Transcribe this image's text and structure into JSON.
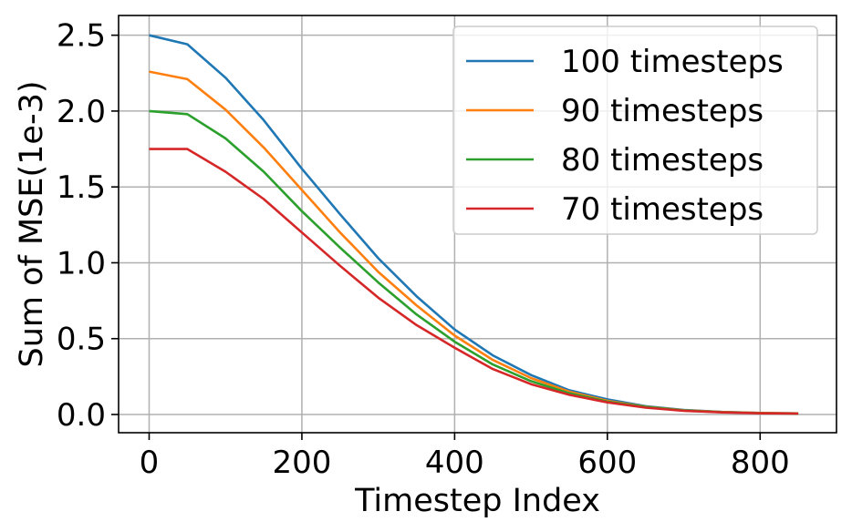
{
  "chart_data": {
    "type": "line",
    "title": "",
    "xlabel": "Timestep Index",
    "ylabel": "Sum of MSE(1e-3)",
    "xlim": [
      -40,
      900
    ],
    "ylim": [
      -0.12,
      2.63
    ],
    "xticks": [
      0,
      200,
      400,
      600,
      800
    ],
    "xtick_labels": [
      "0",
      "200",
      "400",
      "600",
      "800"
    ],
    "yticks": [
      0.0,
      0.5,
      1.0,
      1.5,
      2.0,
      2.5
    ],
    "ytick_labels": [
      "0.0",
      "0.5",
      "1.0",
      "1.5",
      "2.0",
      "2.5"
    ],
    "grid": true,
    "legend_position": "top-right",
    "x": [
      0,
      50,
      100,
      150,
      200,
      250,
      300,
      350,
      400,
      450,
      500,
      550,
      600,
      650,
      700,
      750,
      800,
      850
    ],
    "series": [
      {
        "name": "100 timesteps",
        "color": "#1f77b4",
        "values": [
          2.5,
          2.44,
          2.22,
          1.94,
          1.62,
          1.32,
          1.03,
          0.78,
          0.56,
          0.39,
          0.26,
          0.16,
          0.1,
          0.055,
          0.03,
          0.017,
          0.01,
          0.007
        ]
      },
      {
        "name": "90 timesteps",
        "color": "#ff7f0e",
        "values": [
          2.26,
          2.21,
          2.01,
          1.76,
          1.48,
          1.2,
          0.94,
          0.72,
          0.52,
          0.36,
          0.24,
          0.15,
          0.09,
          0.052,
          0.028,
          0.016,
          0.01,
          0.007
        ]
      },
      {
        "name": "80 timesteps",
        "color": "#2ca02c",
        "values": [
          2.0,
          1.98,
          1.82,
          1.6,
          1.34,
          1.1,
          0.87,
          0.66,
          0.48,
          0.33,
          0.22,
          0.14,
          0.085,
          0.05,
          0.026,
          0.015,
          0.009,
          0.006
        ]
      },
      {
        "name": "70 timesteps",
        "color": "#d62728",
        "values": [
          1.75,
          1.75,
          1.6,
          1.42,
          1.2,
          0.98,
          0.77,
          0.59,
          0.44,
          0.3,
          0.2,
          0.13,
          0.08,
          0.045,
          0.024,
          0.014,
          0.008,
          0.006
        ]
      }
    ]
  }
}
